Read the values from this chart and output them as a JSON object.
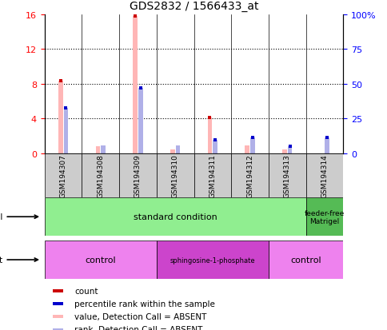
{
  "title": "GDS2832 / 1566433_at",
  "samples": [
    "GSM194307",
    "GSM194308",
    "GSM194309",
    "GSM194310",
    "GSM194311",
    "GSM194312",
    "GSM194313",
    "GSM194314"
  ],
  "value_absent": [
    8.3,
    0.8,
    15.8,
    0.4,
    4.1,
    0.9,
    0.4,
    0.0
  ],
  "rank_absent": [
    5.2,
    0.9,
    7.5,
    0.9,
    1.5,
    1.8,
    0.8,
    1.8
  ],
  "left_ylim": [
    0,
    16
  ],
  "right_ylim": [
    0,
    100
  ],
  "left_yticks": [
    0,
    4,
    8,
    12,
    16
  ],
  "right_yticks": [
    0,
    25,
    50,
    75,
    100
  ],
  "right_yticklabels": [
    "0",
    "25",
    "50",
    "75",
    "100%"
  ],
  "bar_width": 0.12,
  "value_color_absent": "#ffb6b6",
  "rank_color_absent": "#b0b0e8",
  "value_color": "#cc0000",
  "rank_color": "#0000cc",
  "red_markers": {
    "0": 8.3,
    "2": 15.8,
    "4": 4.1
  },
  "blue_markers": {
    "0": 5.2,
    "2": 7.5,
    "4": 1.5,
    "5": 1.8,
    "6": 0.8,
    "7": 1.8
  },
  "growth_protocol_std_color": "#90EE90",
  "growth_protocol_ff_color": "#55BB55",
  "agent_control_color": "#EE82EE",
  "agent_sphingo_color": "#CC44CC",
  "sample_bg_color": "#cccccc",
  "legend_items": [
    {
      "label": "count",
      "color": "#cc0000"
    },
    {
      "label": "percentile rank within the sample",
      "color": "#0000cc"
    },
    {
      "label": "value, Detection Call = ABSENT",
      "color": "#ffb6b6"
    },
    {
      "label": "rank, Detection Call = ABSENT",
      "color": "#b0b0e8"
    }
  ]
}
